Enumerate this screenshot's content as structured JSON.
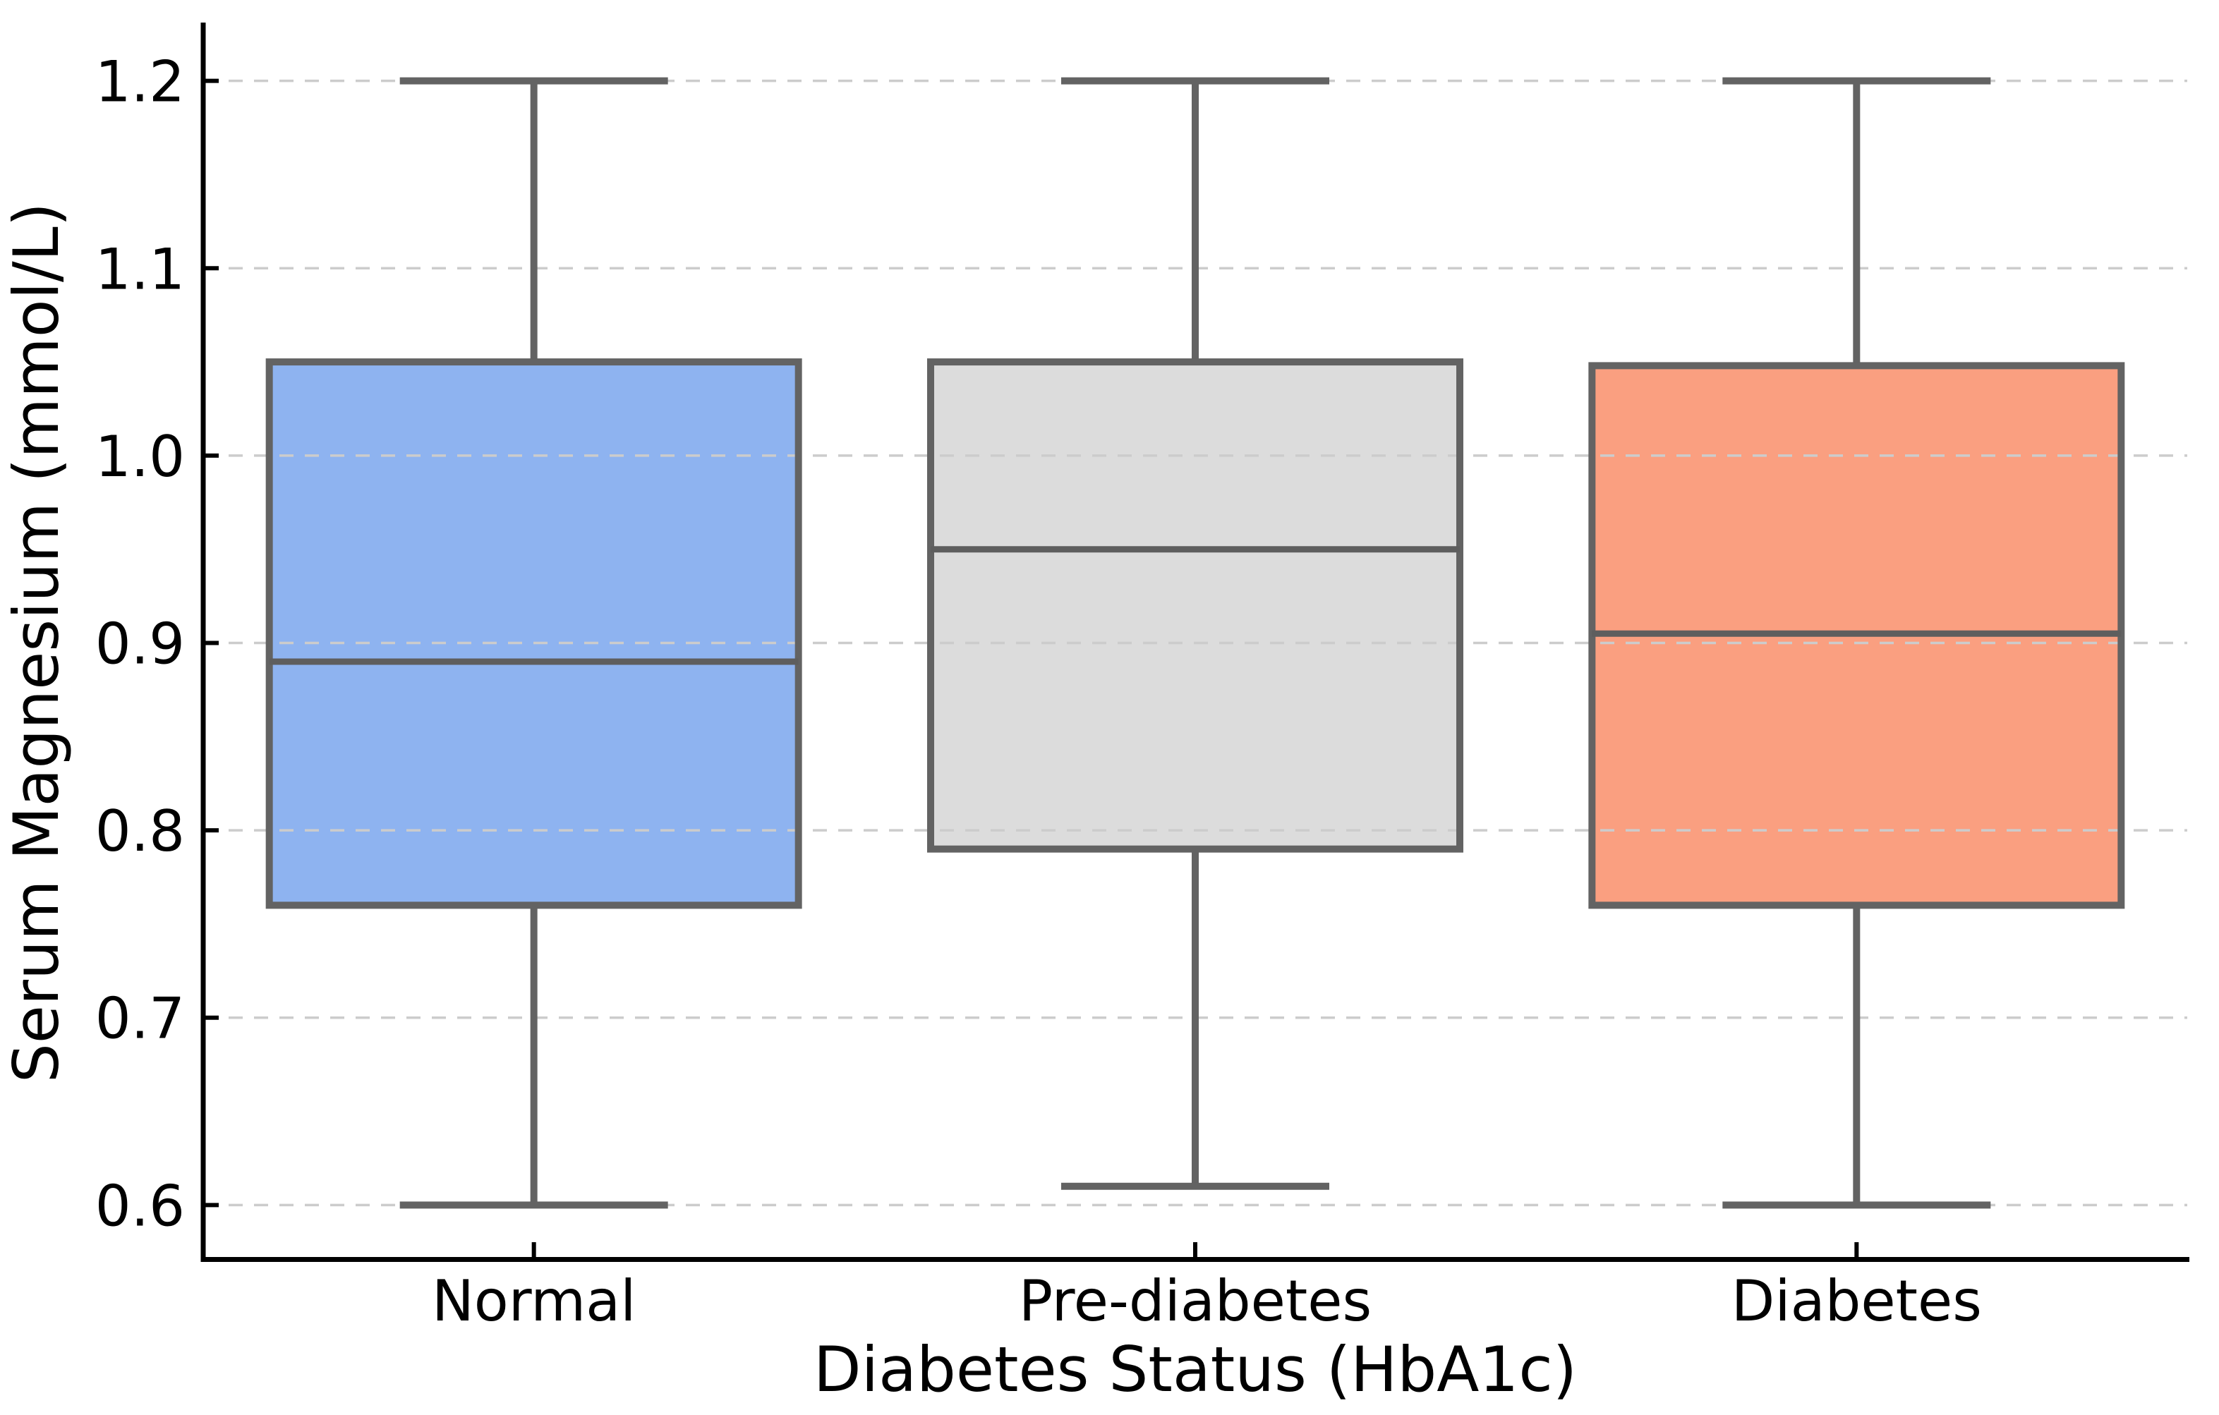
{
  "chart_data": {
    "type": "box",
    "title": "",
    "xlabel": "Diabetes Status (HbA1c)",
    "ylabel": "Serum Magnesium (mmol/L)",
    "categories": [
      "Normal",
      "Pre-diabetes",
      "Diabetes"
    ],
    "yticks": [
      0.6,
      0.7,
      0.8,
      0.9,
      1.0,
      1.1,
      1.2
    ],
    "ylim": [
      0.57,
      1.23
    ],
    "grid": "horizontal-dashed",
    "legend": "none",
    "series": [
      {
        "name": "Normal",
        "whisker_low": 0.6,
        "q1": 0.76,
        "median": 0.89,
        "q3": 1.05,
        "whisker_high": 1.2,
        "fill": "#8EB3F0"
      },
      {
        "name": "Pre-diabetes",
        "whisker_low": 0.61,
        "q1": 0.79,
        "median": 0.95,
        "q3": 1.05,
        "whisker_high": 1.2,
        "fill": "#DCDCDC"
      },
      {
        "name": "Diabetes",
        "whisker_low": 0.6,
        "q1": 0.76,
        "median": 0.905,
        "q3": 1.048,
        "whisker_high": 1.2,
        "fill": "#FA9F80"
      }
    ],
    "colors": {
      "box_edge": "#636363",
      "median": "#5E5E5E",
      "grid": "#CCCCCC",
      "axis": "#000000",
      "background": "#FFFFFF"
    }
  }
}
